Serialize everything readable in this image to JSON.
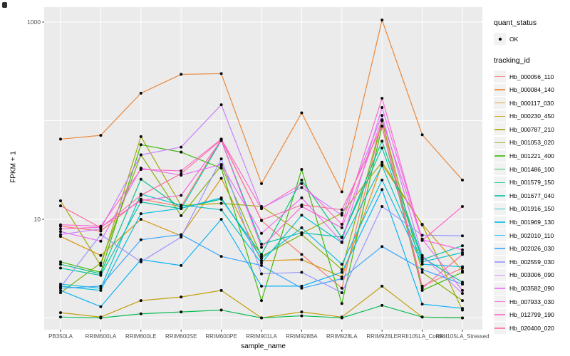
{
  "figure": {
    "panel_bg": "#EBEBEB",
    "grid_color": "#FFFFFF",
    "tick_color": "#333333",
    "tick_label_color": "#4D4D4D",
    "point_color": "#0a0a0a"
  },
  "chart_data": {
    "type": "line",
    "title": "",
    "xlabel": "sample_name",
    "ylabel": "FPKM + 1",
    "y_scale": "log10",
    "ylim": [
      0.76,
      1420
    ],
    "grid": "major",
    "legend_position": "right",
    "y_tick_labels": [
      "1000",
      "10"
    ],
    "y_tick_values": [
      1000,
      10
    ],
    "y_gridline_values": [
      1,
      10,
      100,
      1000
    ],
    "categories": [
      "PB350LA",
      "RRIM600LA",
      "RRIM600LE",
      "RRIM600SE",
      "RRIM600PE",
      "RRIM901LA",
      "RRIM928BA",
      "RRIM928LA",
      "RRIM928LE",
      "RRII105LA_Control",
      "RRII105LA_Stressed"
    ],
    "series": [
      {
        "name": "Hb_000056_110",
        "color": "#F8766D",
        "values": [
          8.5,
          7.6,
          16,
          13.5,
          65,
          9.7,
          4.4,
          2.0,
          100,
          2.1,
          3.2
        ]
      },
      {
        "name": "Hb_000084_140",
        "color": "#EA8331",
        "values": [
          65,
          71,
          190,
          295,
          300,
          23,
          120,
          19,
          1050,
          72,
          25
        ]
      },
      {
        "name": "Hb_000117_030",
        "color": "#D89000",
        "values": [
          6.7,
          4.3,
          10,
          6.8,
          26,
          3.8,
          3.9,
          2.6,
          36,
          8.9,
          3.0
        ]
      },
      {
        "name": "Hb_000230_450",
        "color": "#C09B00",
        "values": [
          1.13,
          1.02,
          1.5,
          1.63,
          1.9,
          1.0,
          1.15,
          1.02,
          2.1,
          1.02,
          1.0
        ]
      },
      {
        "name": "Hb_000787_210",
        "color": "#A3A500",
        "values": [
          15.4,
          3.4,
          69,
          13.8,
          14.5,
          13.5,
          7.2,
          11.5,
          38,
          8.8,
          1.2
        ]
      },
      {
        "name": "Hb_001053_020",
        "color": "#7CAE00",
        "values": [
          1.8,
          3.6,
          45,
          10.9,
          35,
          4.2,
          7.0,
          3.1,
          100,
          2.9,
          1.5
        ]
      },
      {
        "name": "Hb_001221_400",
        "color": "#39B600",
        "values": [
          3.7,
          2.9,
          57,
          48,
          33,
          1.5,
          32,
          1.4,
          88,
          1.9,
          2.9
        ]
      },
      {
        "name": "Hb_001486_100",
        "color": "#00BB4E",
        "values": [
          1.02,
          1.0,
          1.1,
          1.15,
          1.2,
          1.0,
          1.05,
          1.0,
          1.34,
          1.02,
          1.0
        ]
      },
      {
        "name": "Hb_001579_150",
        "color": "#00C087",
        "values": [
          3.5,
          2.8,
          25.5,
          13,
          16,
          4.4,
          25,
          6.5,
          62,
          4.1,
          2.3
        ]
      },
      {
        "name": "Hb_001677_040",
        "color": "#00C1A3",
        "values": [
          3.2,
          2.7,
          15,
          12.8,
          63,
          5.6,
          7.3,
          6.6,
          53,
          3.9,
          5.4
        ]
      },
      {
        "name": "Hb_001916_150",
        "color": "#00BFC4",
        "values": [
          2.2,
          2.0,
          18,
          13.9,
          12.5,
          3.6,
          11,
          5.8,
          35,
          3.7,
          4.6
        ]
      },
      {
        "name": "Hb_001969_130",
        "color": "#00BAE0",
        "values": [
          2.1,
          1.9,
          11.4,
          12.9,
          16.5,
          4.0,
          8.2,
          3.5,
          25,
          3.5,
          3.3
        ]
      },
      {
        "name": "Hb_002010_110",
        "color": "#00B0F6",
        "values": [
          1.9,
          1.3,
          3.9,
          3.4,
          10,
          2.1,
          2.1,
          2.9,
          20,
          1.38,
          1.25
        ]
      },
      {
        "name": "Hb_002026_030",
        "color": "#35A2FF",
        "values": [
          2.0,
          2.1,
          6.2,
          7.0,
          4.2,
          3.4,
          2.0,
          2.5,
          5.3,
          3.1,
          2.2
        ]
      },
      {
        "name": "Hb_002559_030",
        "color": "#9590FF",
        "values": [
          2.05,
          7.0,
          3.7,
          6.6,
          41,
          2.8,
          2.9,
          1.8,
          13.5,
          6.9,
          6.8
        ]
      },
      {
        "name": "Hb_003006_090",
        "color": "#C77CFF",
        "values": [
          7.0,
          8.0,
          45,
          54,
          145,
          13,
          21,
          11,
          113,
          4.3,
          1.77
        ]
      },
      {
        "name": "Hb_003582_090",
        "color": "#E76BF3",
        "values": [
          7.5,
          6.0,
          33,
          28,
          36,
          7.2,
          16.5,
          5.9,
          136,
          6.3,
          1.9
        ]
      },
      {
        "name": "Hb_007933_030",
        "color": "#FA62DB",
        "values": [
          8.0,
          8.3,
          15.5,
          17.5,
          63,
          5.2,
          13.5,
          8.2,
          102,
          6.2,
          4.9
        ]
      },
      {
        "name": "Hb_012799_190",
        "color": "#FF61CC",
        "values": [
          8.8,
          8.5,
          32,
          31,
          65,
          12.8,
          23,
          8.9,
          169,
          6.1,
          13.5
        ]
      },
      {
        "name": "Hb_020400_020",
        "color": "#FF689F",
        "values": [
          13.7,
          8.2,
          17.5,
          29,
          64,
          9.8,
          14,
          12.5,
          88,
          2.0,
          4.4
        ]
      }
    ],
    "legend": {
      "quant_status_title": "quant_status",
      "quant_status_items": [
        {
          "label": "OK",
          "marker": "point",
          "color": "#000000"
        }
      ],
      "tracking_title": "tracking_id"
    }
  }
}
